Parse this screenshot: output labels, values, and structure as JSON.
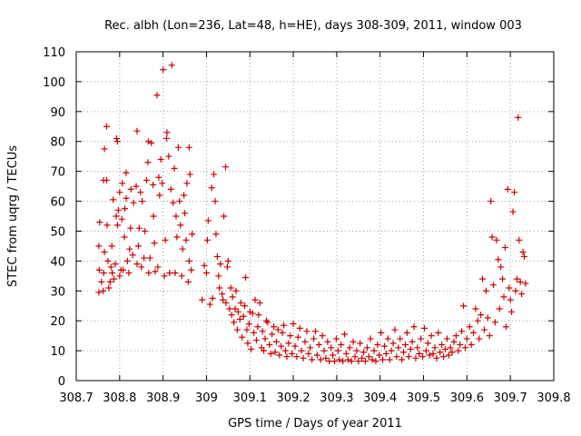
{
  "chart_data": {
    "type": "scatter",
    "title": "Rec. albh (Lon=236, Lat=48, h=HE), days 308-309, 2011, window 003",
    "xlabel": "GPS time / Days of year 2011",
    "ylabel": "STEC from uqrg / TECUs",
    "xlim": [
      308.7,
      309.8
    ],
    "ylim": [
      0,
      110
    ],
    "x_ticks": [
      "308.7",
      "308.8",
      "308.9",
      "309",
      "309.1",
      "309.2",
      "309.3",
      "309.4",
      "309.5",
      "309.6",
      "309.7",
      "309.8"
    ],
    "y_ticks": [
      "0",
      "10",
      "20",
      "30",
      "40",
      "50",
      "60",
      "70",
      "80",
      "90",
      "100",
      "110"
    ],
    "grid": true,
    "marker": "+",
    "color": "#cc0000",
    "series": [
      {
        "points": [
          [
            308.752,
            29.5
          ],
          [
            308.753,
            37
          ],
          [
            308.752,
            45
          ],
          [
            308.754,
            53
          ],
          [
            308.758,
            33
          ],
          [
            308.762,
            30
          ],
          [
            308.763,
            36
          ],
          [
            308.765,
            43
          ],
          [
            308.763,
            67
          ],
          [
            308.765,
            77.5
          ],
          [
            308.77,
            85
          ],
          [
            308.77,
            67
          ],
          [
            308.771,
            52
          ],
          [
            308.773,
            40
          ],
          [
            308.775,
            31
          ],
          [
            308.778,
            33
          ],
          [
            308.78,
            38
          ],
          [
            308.782,
            45
          ],
          [
            308.783,
            36
          ],
          [
            308.785,
            60.5
          ],
          [
            308.787,
            34
          ],
          [
            308.79,
            39
          ],
          [
            308.792,
            55
          ],
          [
            308.793,
            81
          ],
          [
            308.795,
            80
          ],
          [
            308.795,
            52
          ],
          [
            308.797,
            57
          ],
          [
            308.8,
            35
          ],
          [
            308.8,
            63
          ],
          [
            308.803,
            37
          ],
          [
            308.805,
            54
          ],
          [
            308.806,
            66
          ],
          [
            308.808,
            37
          ],
          [
            308.811,
            48
          ],
          [
            308.812,
            57.5
          ],
          [
            308.815,
            61
          ],
          [
            308.815,
            69.5
          ],
          [
            308.818,
            40
          ],
          [
            308.821,
            36
          ],
          [
            308.823,
            44
          ],
          [
            308.825,
            51
          ],
          [
            308.826,
            64
          ],
          [
            308.83,
            42
          ],
          [
            308.832,
            59.5
          ],
          [
            308.838,
            65
          ],
          [
            308.84,
            83.5
          ],
          [
            308.84,
            39
          ],
          [
            308.843,
            45
          ],
          [
            308.845,
            51
          ],
          [
            308.848,
            63
          ],
          [
            308.85,
            38
          ],
          [
            308.852,
            60
          ],
          [
            308.856,
            41
          ],
          [
            308.858,
            50
          ],
          [
            308.862,
            67
          ],
          [
            308.865,
            73
          ],
          [
            308.866,
            80
          ],
          [
            308.867,
            36
          ],
          [
            308.87,
            41
          ],
          [
            308.873,
            79.5
          ],
          [
            308.877,
            65.5
          ],
          [
            308.878,
            55
          ],
          [
            308.88,
            46
          ],
          [
            308.882,
            36.5
          ],
          [
            308.886,
            95.5
          ],
          [
            308.888,
            38
          ],
          [
            308.89,
            68
          ],
          [
            308.892,
            62
          ],
          [
            308.895,
            74
          ],
          [
            308.898,
            66
          ],
          [
            308.9,
            104
          ],
          [
            308.903,
            35
          ],
          [
            308.905,
            47
          ],
          [
            308.908,
            81
          ],
          [
            308.909,
            83
          ],
          [
            308.913,
            75
          ],
          [
            308.915,
            36
          ],
          [
            308.918,
            64
          ],
          [
            308.92,
            105.5
          ],
          [
            308.923,
            59.5
          ],
          [
            308.926,
            71
          ],
          [
            308.928,
            36
          ],
          [
            308.93,
            55
          ],
          [
            308.932,
            48
          ],
          [
            308.935,
            78
          ],
          [
            308.938,
            60
          ],
          [
            308.94,
            52
          ],
          [
            308.943,
            35
          ],
          [
            308.945,
            44
          ],
          [
            308.948,
            62
          ],
          [
            308.95,
            56
          ],
          [
            308.953,
            47
          ],
          [
            308.955,
            66
          ],
          [
            308.958,
            33
          ],
          [
            308.96,
            40
          ],
          [
            308.96,
            78
          ],
          [
            308.962,
            69
          ],
          [
            308.965,
            37
          ],
          [
            308.967,
            49
          ],
          [
            308.99,
            27
          ],
          [
            308.995,
            38.5
          ],
          [
            309.0,
            36
          ],
          [
            309.002,
            47
          ],
          [
            309.004,
            53.5
          ],
          [
            309.008,
            25.5
          ],
          [
            309.012,
            64.5
          ],
          [
            309.014,
            27.5
          ],
          [
            309.017,
            69
          ],
          [
            309.02,
            60
          ],
          [
            309.022,
            49
          ],
          [
            309.025,
            41.5
          ],
          [
            309.028,
            35
          ],
          [
            309.03,
            31
          ],
          [
            309.032,
            39
          ],
          [
            309.036,
            29
          ],
          [
            309.038,
            27
          ],
          [
            309.04,
            55
          ],
          [
            309.044,
            71.5
          ],
          [
            309.045,
            26
          ],
          [
            309.048,
            38
          ],
          [
            309.05,
            40
          ],
          [
            309.053,
            24
          ],
          [
            309.056,
            31
          ],
          [
            309.058,
            22
          ],
          [
            309.06,
            28
          ],
          [
            309.063,
            19.5
          ],
          [
            309.066,
            24
          ],
          [
            309.068,
            30
          ],
          [
            309.071,
            17
          ],
          [
            309.073,
            23
          ],
          [
            309.077,
            20.5
          ],
          [
            309.079,
            26
          ],
          [
            309.082,
            14.5
          ],
          [
            309.085,
            21.5
          ],
          [
            309.088,
            25
          ],
          [
            309.09,
            34.5
          ],
          [
            309.093,
            17
          ],
          [
            309.095,
            12.5
          ],
          [
            309.098,
            19
          ],
          [
            309.1,
            23
          ],
          [
            309.103,
            10.5
          ],
          [
            309.106,
            22.5
          ],
          [
            309.109,
            16
          ],
          [
            309.112,
            27
          ],
          [
            309.115,
            13.5
          ],
          [
            309.118,
            18
          ],
          [
            309.12,
            22
          ],
          [
            309.123,
            26
          ],
          [
            309.127,
            11
          ],
          [
            309.129,
            16.5
          ],
          [
            309.132,
            10
          ],
          [
            309.135,
            14
          ],
          [
            309.138,
            20
          ],
          [
            309.141,
            19.5
          ],
          [
            309.145,
            12
          ],
          [
            309.148,
            9
          ],
          [
            309.151,
            15.5
          ],
          [
            309.155,
            18
          ],
          [
            309.158,
            9.5
          ],
          [
            309.161,
            13
          ],
          [
            309.165,
            17
          ],
          [
            309.168,
            8.5
          ],
          [
            309.172,
            11.5
          ],
          [
            309.175,
            16
          ],
          [
            309.178,
            18.5
          ],
          [
            309.182,
            10
          ],
          [
            309.185,
            8
          ],
          [
            309.189,
            12.5
          ],
          [
            309.193,
            15
          ],
          [
            309.197,
            9
          ],
          [
            309.2,
            19
          ],
          [
            309.204,
            11.5
          ],
          [
            309.208,
            8
          ],
          [
            309.211,
            14.5
          ],
          [
            309.215,
            17.5
          ],
          [
            309.219,
            10
          ],
          [
            309.223,
            7.5
          ],
          [
            309.227,
            13
          ],
          [
            309.231,
            16.5
          ],
          [
            309.235,
            9
          ],
          [
            309.239,
            11
          ],
          [
            309.243,
            7
          ],
          [
            309.247,
            14
          ],
          [
            309.251,
            16.5
          ],
          [
            309.255,
            8.5
          ],
          [
            309.259,
            12
          ],
          [
            309.263,
            7
          ],
          [
            309.267,
            15
          ],
          [
            309.271,
            10
          ],
          [
            309.275,
            7.5
          ],
          [
            309.279,
            13
          ],
          [
            309.283,
            6.5
          ],
          [
            309.287,
            11
          ],
          [
            309.291,
            8.5
          ],
          [
            309.295,
            6.5
          ],
          [
            309.299,
            14
          ],
          [
            309.303,
            10
          ],
          [
            309.306,
            7
          ],
          [
            309.31,
            12
          ],
          [
            309.314,
            6.5
          ],
          [
            309.318,
            15.5
          ],
          [
            309.322,
            9
          ],
          [
            309.326,
            7
          ],
          [
            309.33,
            11
          ],
          [
            309.334,
            6.5
          ],
          [
            309.338,
            13
          ],
          [
            309.342,
            8
          ],
          [
            309.346,
            10
          ],
          [
            309.35,
            6.5
          ],
          [
            309.354,
            12.5
          ],
          [
            309.358,
            7.5
          ],
          [
            309.362,
            9.5
          ],
          [
            309.366,
            6.5
          ],
          [
            309.37,
            11
          ],
          [
            309.374,
            8
          ],
          [
            309.378,
            14
          ],
          [
            309.382,
            7
          ],
          [
            309.386,
            10
          ],
          [
            309.39,
            6.5
          ],
          [
            309.394,
            12
          ],
          [
            309.398,
            8.5
          ],
          [
            309.402,
            16
          ],
          [
            309.406,
            7
          ],
          [
            309.41,
            11.5
          ],
          [
            309.414,
            9
          ],
          [
            309.418,
            14
          ],
          [
            309.422,
            7
          ],
          [
            309.426,
            10
          ],
          [
            309.43,
            12.5
          ],
          [
            309.434,
            17
          ],
          [
            309.438,
            8
          ],
          [
            309.442,
            11
          ],
          [
            309.446,
            14
          ],
          [
            309.45,
            7
          ],
          [
            309.454,
            9.5
          ],
          [
            309.458,
            12
          ],
          [
            309.462,
            16
          ],
          [
            309.466,
            8
          ],
          [
            309.47,
            10.5
          ],
          [
            309.474,
            13
          ],
          [
            309.478,
            18
          ],
          [
            309.482,
            7.5
          ],
          [
            309.486,
            11
          ],
          [
            309.49,
            9
          ],
          [
            309.494,
            14
          ],
          [
            309.498,
            8
          ],
          [
            309.502,
            17.5
          ],
          [
            309.506,
            10
          ],
          [
            309.51,
            12.5
          ],
          [
            309.514,
            8.5
          ],
          [
            309.518,
            15
          ],
          [
            309.522,
            9
          ],
          [
            309.526,
            11
          ],
          [
            309.53,
            7.5
          ],
          [
            309.534,
            16
          ],
          [
            309.538,
            9.5
          ],
          [
            309.542,
            12
          ],
          [
            309.546,
            8
          ],
          [
            309.55,
            10.5
          ],
          [
            309.554,
            14
          ],
          [
            309.558,
            8.5
          ],
          [
            309.562,
            11
          ],
          [
            309.566,
            9.5
          ],
          [
            309.57,
            13
          ],
          [
            309.575,
            15
          ],
          [
            309.58,
            10
          ],
          [
            309.584,
            12
          ],
          [
            309.588,
            16.5
          ],
          [
            309.592,
            25
          ],
          [
            309.596,
            11
          ],
          [
            309.6,
            14
          ],
          [
            309.606,
            18
          ],
          [
            309.61,
            12
          ],
          [
            309.615,
            16
          ],
          [
            309.62,
            24
          ],
          [
            309.625,
            20
          ],
          [
            309.628,
            14
          ],
          [
            309.632,
            22
          ],
          [
            309.636,
            34
          ],
          [
            309.64,
            17
          ],
          [
            309.644,
            30
          ],
          [
            309.648,
            21
          ],
          [
            309.652,
            15
          ],
          [
            309.655,
            60
          ],
          [
            309.658,
            48
          ],
          [
            309.661,
            32
          ],
          [
            309.665,
            19.5
          ],
          [
            309.668,
            47
          ],
          [
            309.672,
            40.5
          ],
          [
            309.675,
            24
          ],
          [
            309.678,
            38
          ],
          [
            309.682,
            34
          ],
          [
            309.685,
            28
          ],
          [
            309.688,
            44.5
          ],
          [
            309.69,
            18
          ],
          [
            309.694,
            64
          ],
          [
            309.697,
            31
          ],
          [
            309.7,
            27
          ],
          [
            309.703,
            23
          ],
          [
            309.706,
            56.5
          ],
          [
            309.709,
            63
          ],
          [
            309.712,
            30
          ],
          [
            309.715,
            34
          ],
          [
            309.718,
            88
          ],
          [
            309.72,
            47
          ],
          [
            309.723,
            33
          ],
          [
            309.726,
            29
          ],
          [
            309.729,
            43
          ],
          [
            309.732,
            41.5
          ],
          [
            309.735,
            32.5
          ]
        ]
      }
    ]
  }
}
